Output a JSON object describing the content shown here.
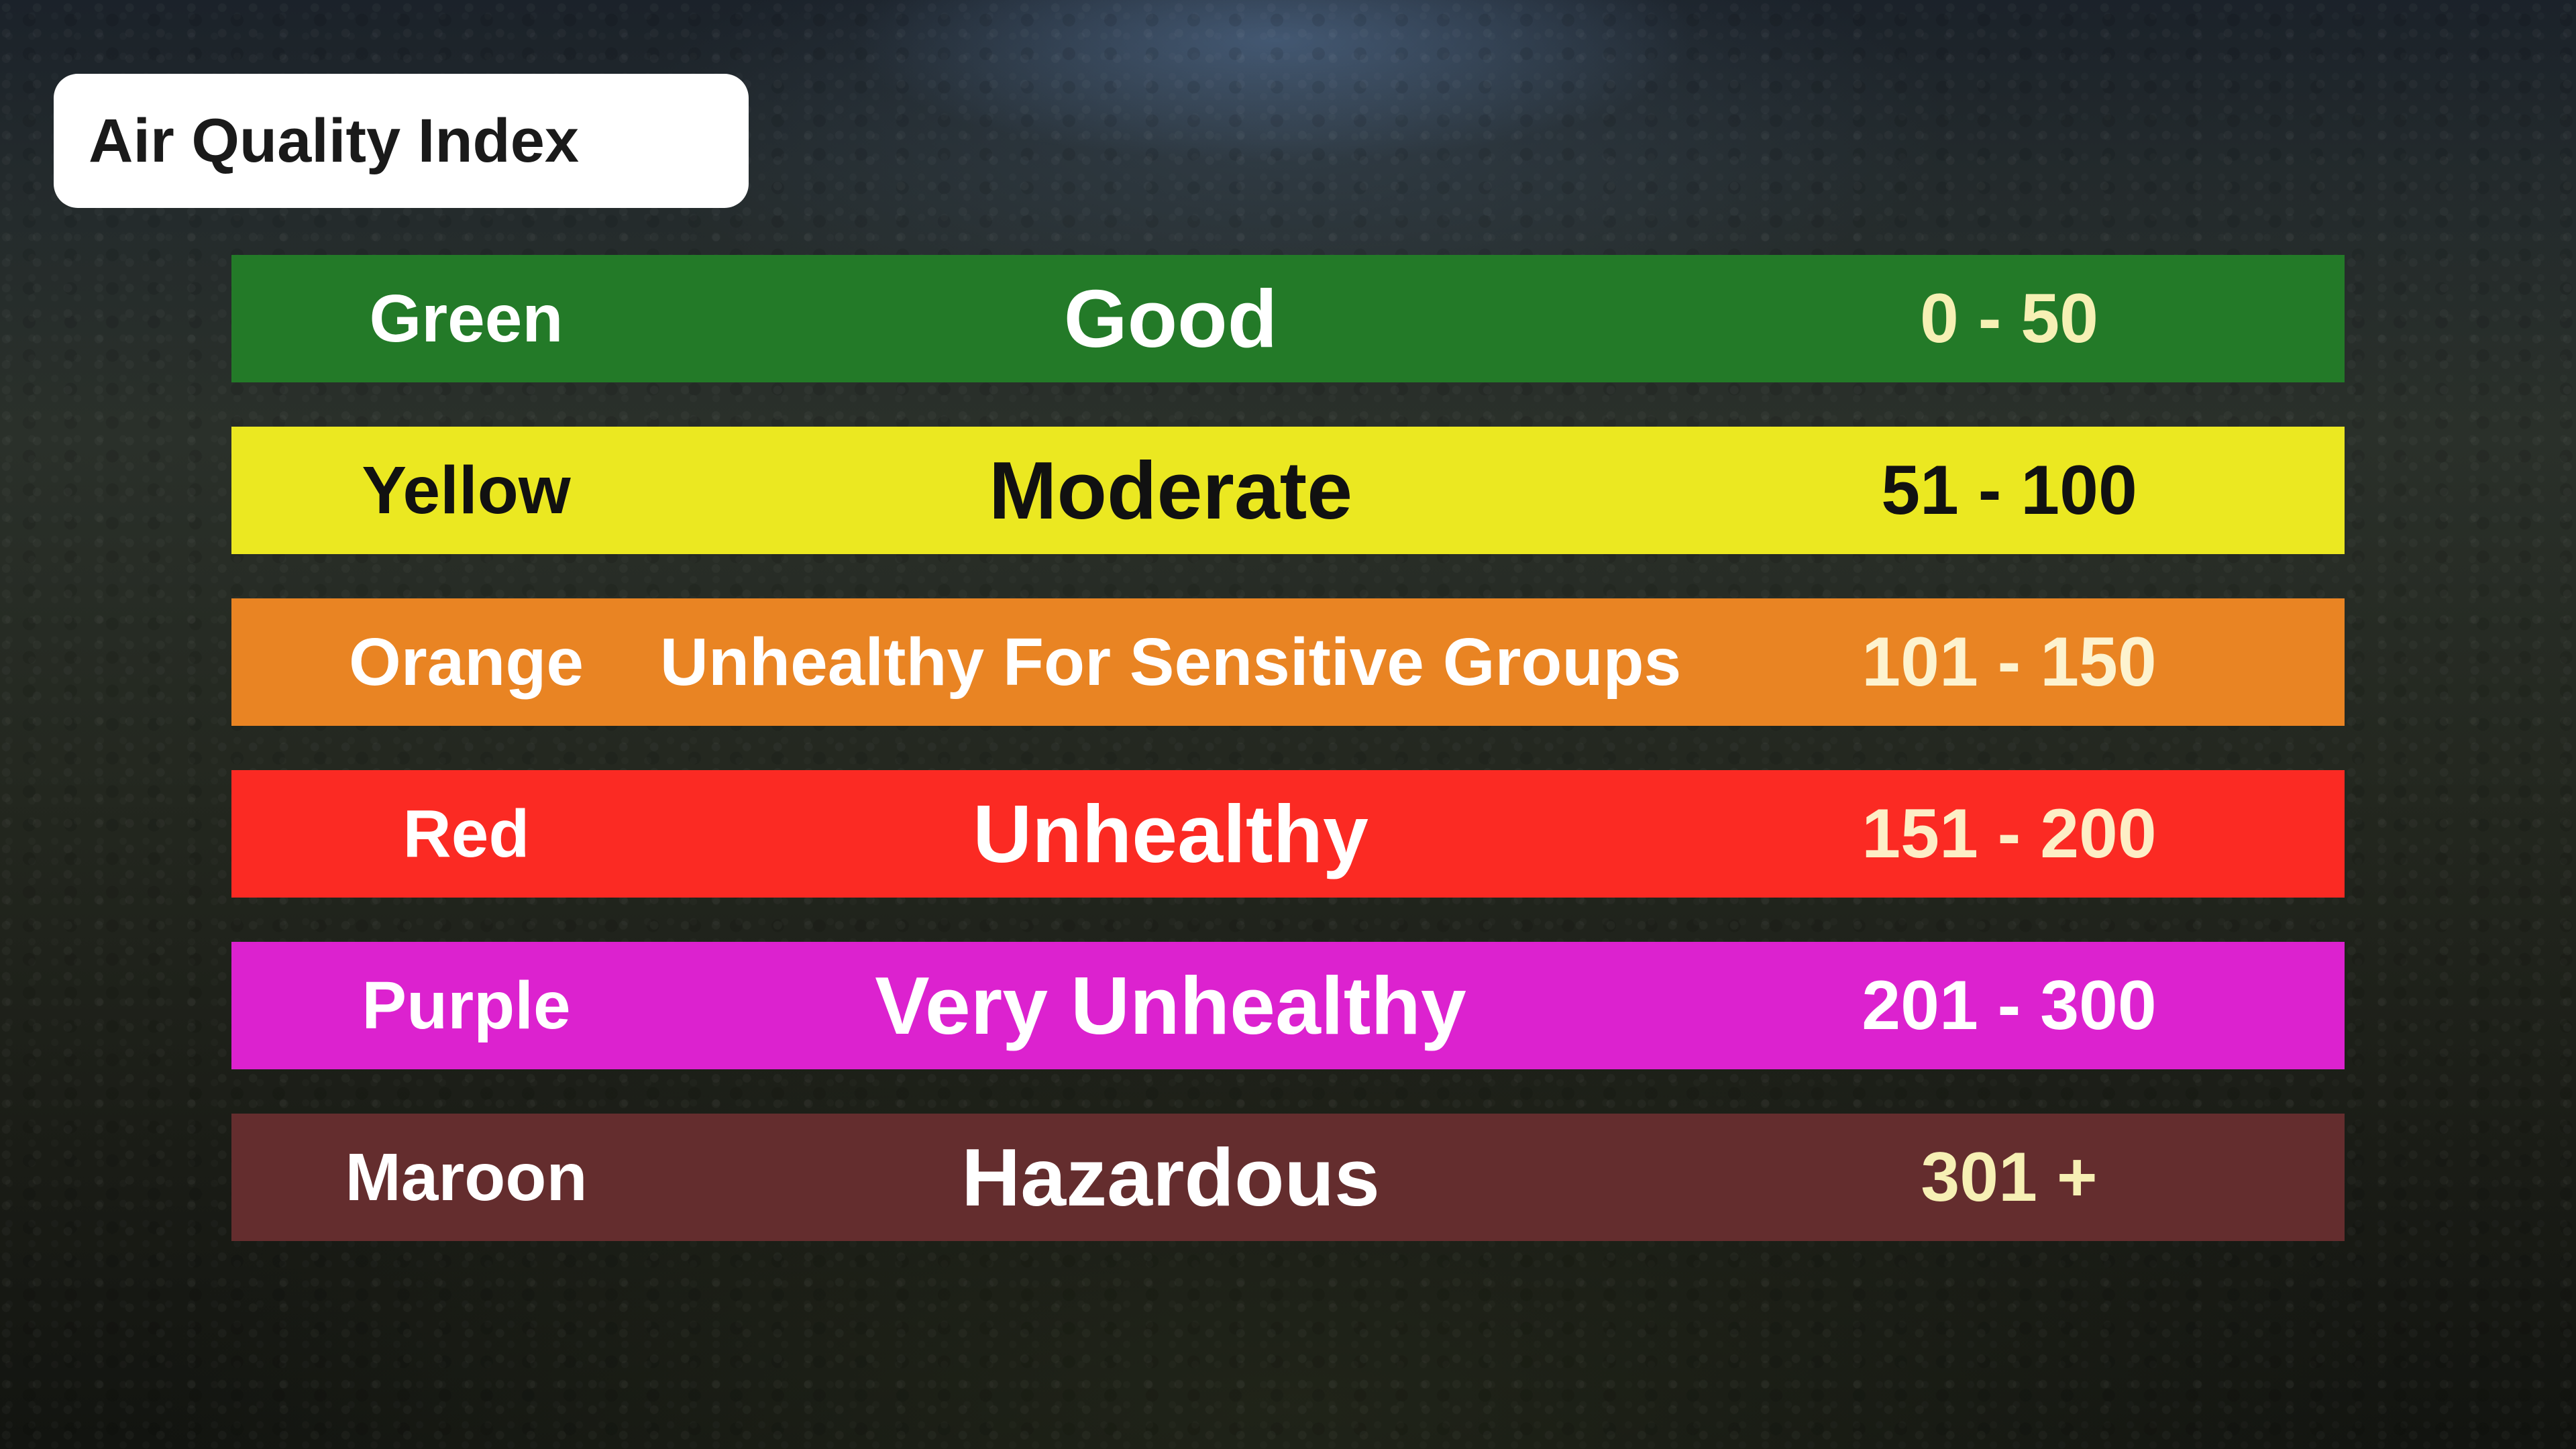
{
  "title": "Air Quality Index",
  "rows": [
    {
      "color_name": "Green",
      "level": "Good",
      "range": "0 - 50",
      "bg": "#237a28",
      "text_color": "#ffffff",
      "range_color": "#f6f0b4"
    },
    {
      "color_name": "Yellow",
      "level": "Moderate",
      "range": "51 - 100",
      "bg": "#ebe821",
      "text_color": "#111111",
      "range_color": "#111111"
    },
    {
      "color_name": "Orange",
      "level": "Unhealthy For Sensitive Groups",
      "range": "101 - 150",
      "bg": "#e98423",
      "text_color": "#ffffff",
      "range_color": "#fdf3cf"
    },
    {
      "color_name": "Red",
      "level": "Unhealthy",
      "range": "151 - 200",
      "bg": "#fb2a23",
      "text_color": "#ffffff",
      "range_color": "#fdeec6"
    },
    {
      "color_name": "Purple",
      "level": "Very Unhealthy",
      "range": "201 - 300",
      "bg": "#dc22cf",
      "text_color": "#ffffff",
      "range_color": "#ffffff"
    },
    {
      "color_name": "Maroon",
      "level": "Hazardous",
      "range": "301 +",
      "bg": "#642d2e",
      "text_color": "#ffffff",
      "range_color": "#f6f0b4"
    }
  ]
}
